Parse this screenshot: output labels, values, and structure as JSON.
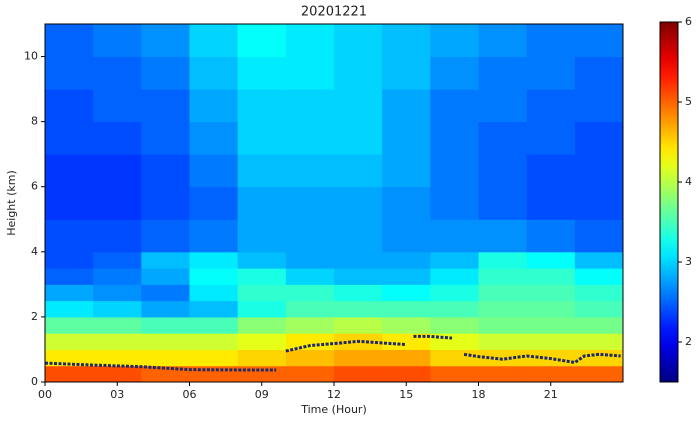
{
  "chart_data": {
    "type": "heatmap",
    "title": "20201221",
    "xlabel": "Time (Hour)",
    "ylabel": "Height (km)",
    "colormap": "jet",
    "xlim": [
      0,
      24
    ],
    "ylim": [
      0,
      11
    ],
    "xticks": [
      {
        "value": 0,
        "label": "00"
      },
      {
        "value": 3,
        "label": "03"
      },
      {
        "value": 6,
        "label": "06"
      },
      {
        "value": 9,
        "label": "09"
      },
      12,
      15,
      18,
      21
    ],
    "yticks": [
      0,
      2,
      4,
      6,
      8,
      10
    ],
    "clim": [
      1.5,
      6
    ],
    "cticks": [
      2,
      3,
      4,
      5,
      6
    ],
    "x_bins": [
      0,
      2,
      4,
      6,
      8,
      10,
      12,
      14,
      16,
      18,
      20,
      22,
      24
    ],
    "y_bins": [
      0,
      0.5,
      1,
      1.5,
      2,
      2.5,
      3,
      3.5,
      4,
      5,
      6,
      7,
      8,
      9,
      10,
      11
    ],
    "values": [
      [
        5.1,
        5.1,
        5.0,
        5.0,
        5.0,
        5.0,
        5.1,
        5.1,
        5.0,
        5.0,
        5.0,
        5.0
      ],
      [
        4.4,
        4.4,
        4.4,
        4.4,
        4.5,
        4.6,
        4.7,
        4.7,
        4.5,
        4.5,
        4.5,
        4.5
      ],
      [
        4.1,
        4.1,
        4.1,
        4.1,
        4.2,
        4.4,
        4.5,
        4.4,
        4.2,
        4.1,
        4.1,
        4.1
      ],
      [
        3.6,
        3.6,
        3.5,
        3.5,
        3.8,
        3.9,
        4.0,
        3.9,
        3.8,
        3.7,
        3.7,
        3.7
      ],
      [
        3.1,
        3.0,
        2.8,
        2.9,
        3.3,
        3.5,
        3.5,
        3.5,
        3.5,
        3.6,
        3.6,
        3.5
      ],
      [
        2.8,
        2.7,
        2.6,
        3.1,
        3.4,
        3.4,
        3.3,
        3.2,
        3.3,
        3.5,
        3.5,
        3.4
      ],
      [
        2.5,
        2.6,
        2.8,
        3.2,
        3.3,
        3.0,
        2.9,
        2.9,
        3.1,
        3.4,
        3.4,
        3.2
      ],
      [
        2.4,
        2.5,
        2.9,
        3.1,
        2.9,
        2.8,
        2.8,
        2.8,
        2.9,
        3.3,
        3.2,
        2.9
      ],
      [
        2.4,
        2.4,
        2.5,
        2.6,
        2.8,
        2.8,
        2.8,
        2.7,
        2.7,
        2.7,
        2.6,
        2.5
      ],
      [
        2.3,
        2.3,
        2.4,
        2.5,
        2.8,
        2.8,
        2.8,
        2.7,
        2.6,
        2.5,
        2.4,
        2.4
      ],
      [
        2.3,
        2.3,
        2.4,
        2.6,
        2.9,
        2.9,
        2.9,
        2.8,
        2.6,
        2.5,
        2.4,
        2.4
      ],
      [
        2.4,
        2.4,
        2.5,
        2.7,
        3.0,
        3.0,
        3.0,
        2.8,
        2.6,
        2.5,
        2.5,
        2.4
      ],
      [
        2.4,
        2.5,
        2.5,
        2.8,
        3.0,
        3.0,
        3.0,
        2.8,
        2.6,
        2.6,
        2.5,
        2.5
      ],
      [
        2.5,
        2.5,
        2.6,
        2.9,
        3.1,
        3.1,
        3.0,
        2.9,
        2.7,
        2.6,
        2.6,
        2.5
      ],
      [
        2.5,
        2.6,
        2.7,
        3.0,
        3.2,
        3.1,
        3.0,
        2.9,
        2.8,
        2.7,
        2.6,
        2.6
      ]
    ],
    "boundary_layer": {
      "color": "#1f2a6b",
      "x": [
        0,
        2,
        4,
        6,
        8,
        9.6,
        9.8,
        10,
        11,
        12,
        13,
        14,
        15,
        15.1,
        15.3,
        16,
        16.9,
        17,
        17.4,
        18,
        19,
        20,
        21,
        22,
        22.4,
        23,
        23.9
      ],
      "values": [
        0.58,
        0.52,
        0.47,
        0.38,
        0.37,
        0.37,
        null,
        0.95,
        1.12,
        1.18,
        1.25,
        1.2,
        1.15,
        null,
        1.4,
        1.4,
        1.35,
        null,
        0.85,
        0.78,
        0.7,
        0.8,
        0.72,
        0.6,
        0.8,
        0.85,
        0.8
      ]
    }
  }
}
